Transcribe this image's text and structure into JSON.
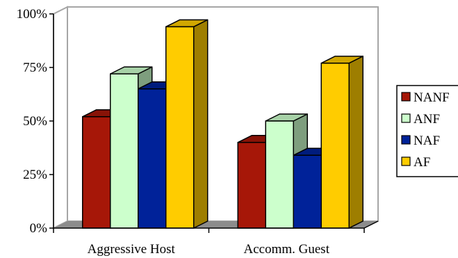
{
  "chart_data": {
    "type": "bar",
    "categories": [
      "Aggressive Host",
      "Accomm. Guest"
    ],
    "series": [
      {
        "name": "NANF",
        "color": "#a61708",
        "values": [
          52,
          40
        ]
      },
      {
        "name": "ANF",
        "color": "#ccffcc",
        "values": [
          72,
          50
        ]
      },
      {
        "name": "NAF",
        "color": "#002299",
        "values": [
          65,
          34
        ]
      },
      {
        "name": "AF",
        "color": "#ffcc00",
        "values": [
          94,
          77
        ]
      }
    ],
    "yticks": [
      "0%",
      "25%",
      "50%",
      "75%",
      "100%"
    ],
    "ylim": [
      0,
      100
    ],
    "grid": false,
    "legend": "right"
  }
}
